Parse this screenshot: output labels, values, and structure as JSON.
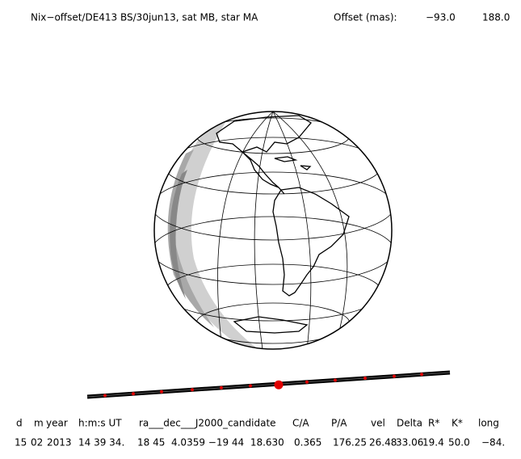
{
  "header": {
    "title": "Nix−offset/DE413 BS/30jun13, sat MB, star MA",
    "offset_label": "Offset (mas):",
    "offset_x": "−93.0",
    "offset_y": "188.0"
  },
  "table": {
    "columns": [
      "d",
      "m",
      "year",
      "h:m:s UT",
      "ra___dec___J2000_candidate",
      "C/A",
      "P/A",
      "vel",
      "Delta",
      "R*",
      "K*",
      "long"
    ],
    "rows": [
      [
        "15",
        "02",
        "2013",
        "14 39 34.",
        "18 45  4.0359 −19 44  18.630",
        "0.365",
        "176.25",
        "26.48",
        "33.06",
        "19.4",
        "50.0",
        "−84."
      ]
    ]
  }
}
